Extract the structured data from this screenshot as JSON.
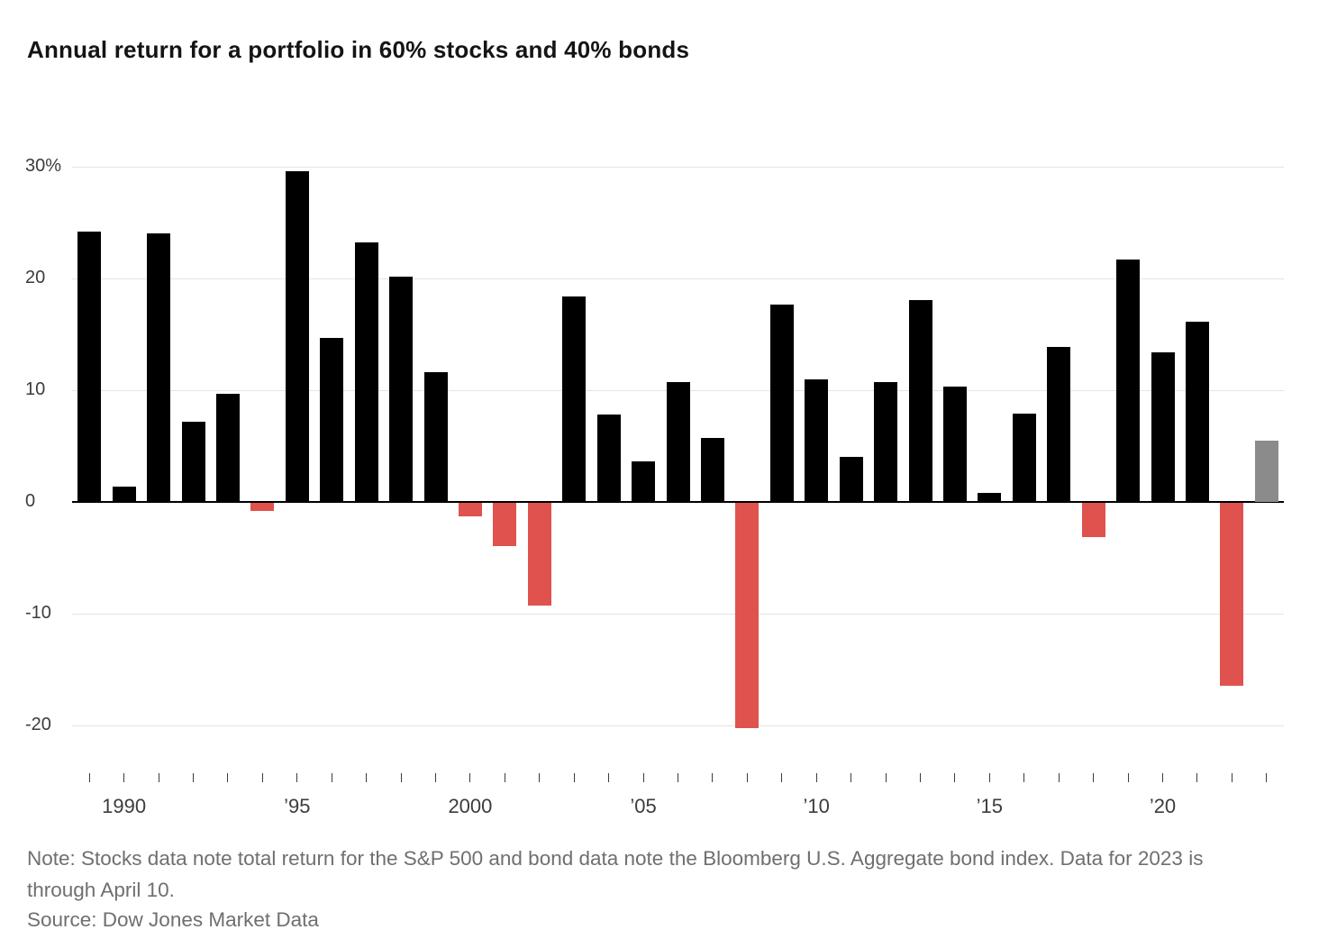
{
  "title": "Annual return for a portfolio in 60% stocks and 40% bonds",
  "note": "Note: Stocks data note total return for the S&P 500 and bond data note the Bloomberg U.S. Aggregate bond index. Data for 2023 is through April 10.",
  "source": "Source: Dow Jones Market Data",
  "chart_data": {
    "type": "bar",
    "title": "Annual return for a portfolio in 60% stocks and 40% bonds",
    "xlabel": "",
    "ylabel": "",
    "ylim": [
      -22,
      32
    ],
    "grid": "horizontal",
    "legend": "none",
    "categories": [
      1989,
      1990,
      1991,
      1992,
      1993,
      1994,
      1995,
      1996,
      1997,
      1998,
      1999,
      2000,
      2001,
      2002,
      2003,
      2004,
      2005,
      2006,
      2007,
      2008,
      2009,
      2010,
      2011,
      2012,
      2013,
      2014,
      2015,
      2016,
      2017,
      2018,
      2019,
      2020,
      2021,
      2022,
      2023
    ],
    "values": [
      24.2,
      1.4,
      24.0,
      7.2,
      9.7,
      -0.7,
      29.6,
      14.7,
      23.2,
      20.2,
      11.6,
      -1.2,
      -3.9,
      -9.2,
      18.4,
      7.8,
      3.6,
      10.7,
      5.7,
      -20.2,
      17.7,
      11.0,
      4.0,
      10.7,
      18.1,
      10.3,
      0.8,
      7.9,
      13.9,
      -3.1,
      21.7,
      13.4,
      16.1,
      -16.4,
      5.5
    ],
    "bar_colors": [
      "black",
      "black",
      "black",
      "black",
      "black",
      "red",
      "black",
      "black",
      "black",
      "black",
      "black",
      "red",
      "red",
      "red",
      "black",
      "black",
      "black",
      "black",
      "black",
      "red",
      "black",
      "black",
      "black",
      "black",
      "black",
      "black",
      "black",
      "black",
      "black",
      "red",
      "black",
      "black",
      "black",
      "red",
      "gray"
    ],
    "yticks": [
      {
        "value": 30,
        "label": "30%"
      },
      {
        "value": 20,
        "label": "20"
      },
      {
        "value": 10,
        "label": "10"
      },
      {
        "value": 0,
        "label": "0"
      },
      {
        "value": -10,
        "label": "-10"
      },
      {
        "value": -20,
        "label": "-20"
      }
    ],
    "x_axis_labels": [
      {
        "year": 1990,
        "label": "1990"
      },
      {
        "year": 1995,
        "label": "’95"
      },
      {
        "year": 2000,
        "label": "2000"
      },
      {
        "year": 2005,
        "label": "’05"
      },
      {
        "year": 2010,
        "label": "’10"
      },
      {
        "year": 2015,
        "label": "’15"
      },
      {
        "year": 2020,
        "label": "’20"
      }
    ],
    "colors": {
      "black": "#000000",
      "red": "#e0524e",
      "gray": "#8b8b8b",
      "grid": "#e4e4e4",
      "zero_line": "#000000"
    }
  }
}
